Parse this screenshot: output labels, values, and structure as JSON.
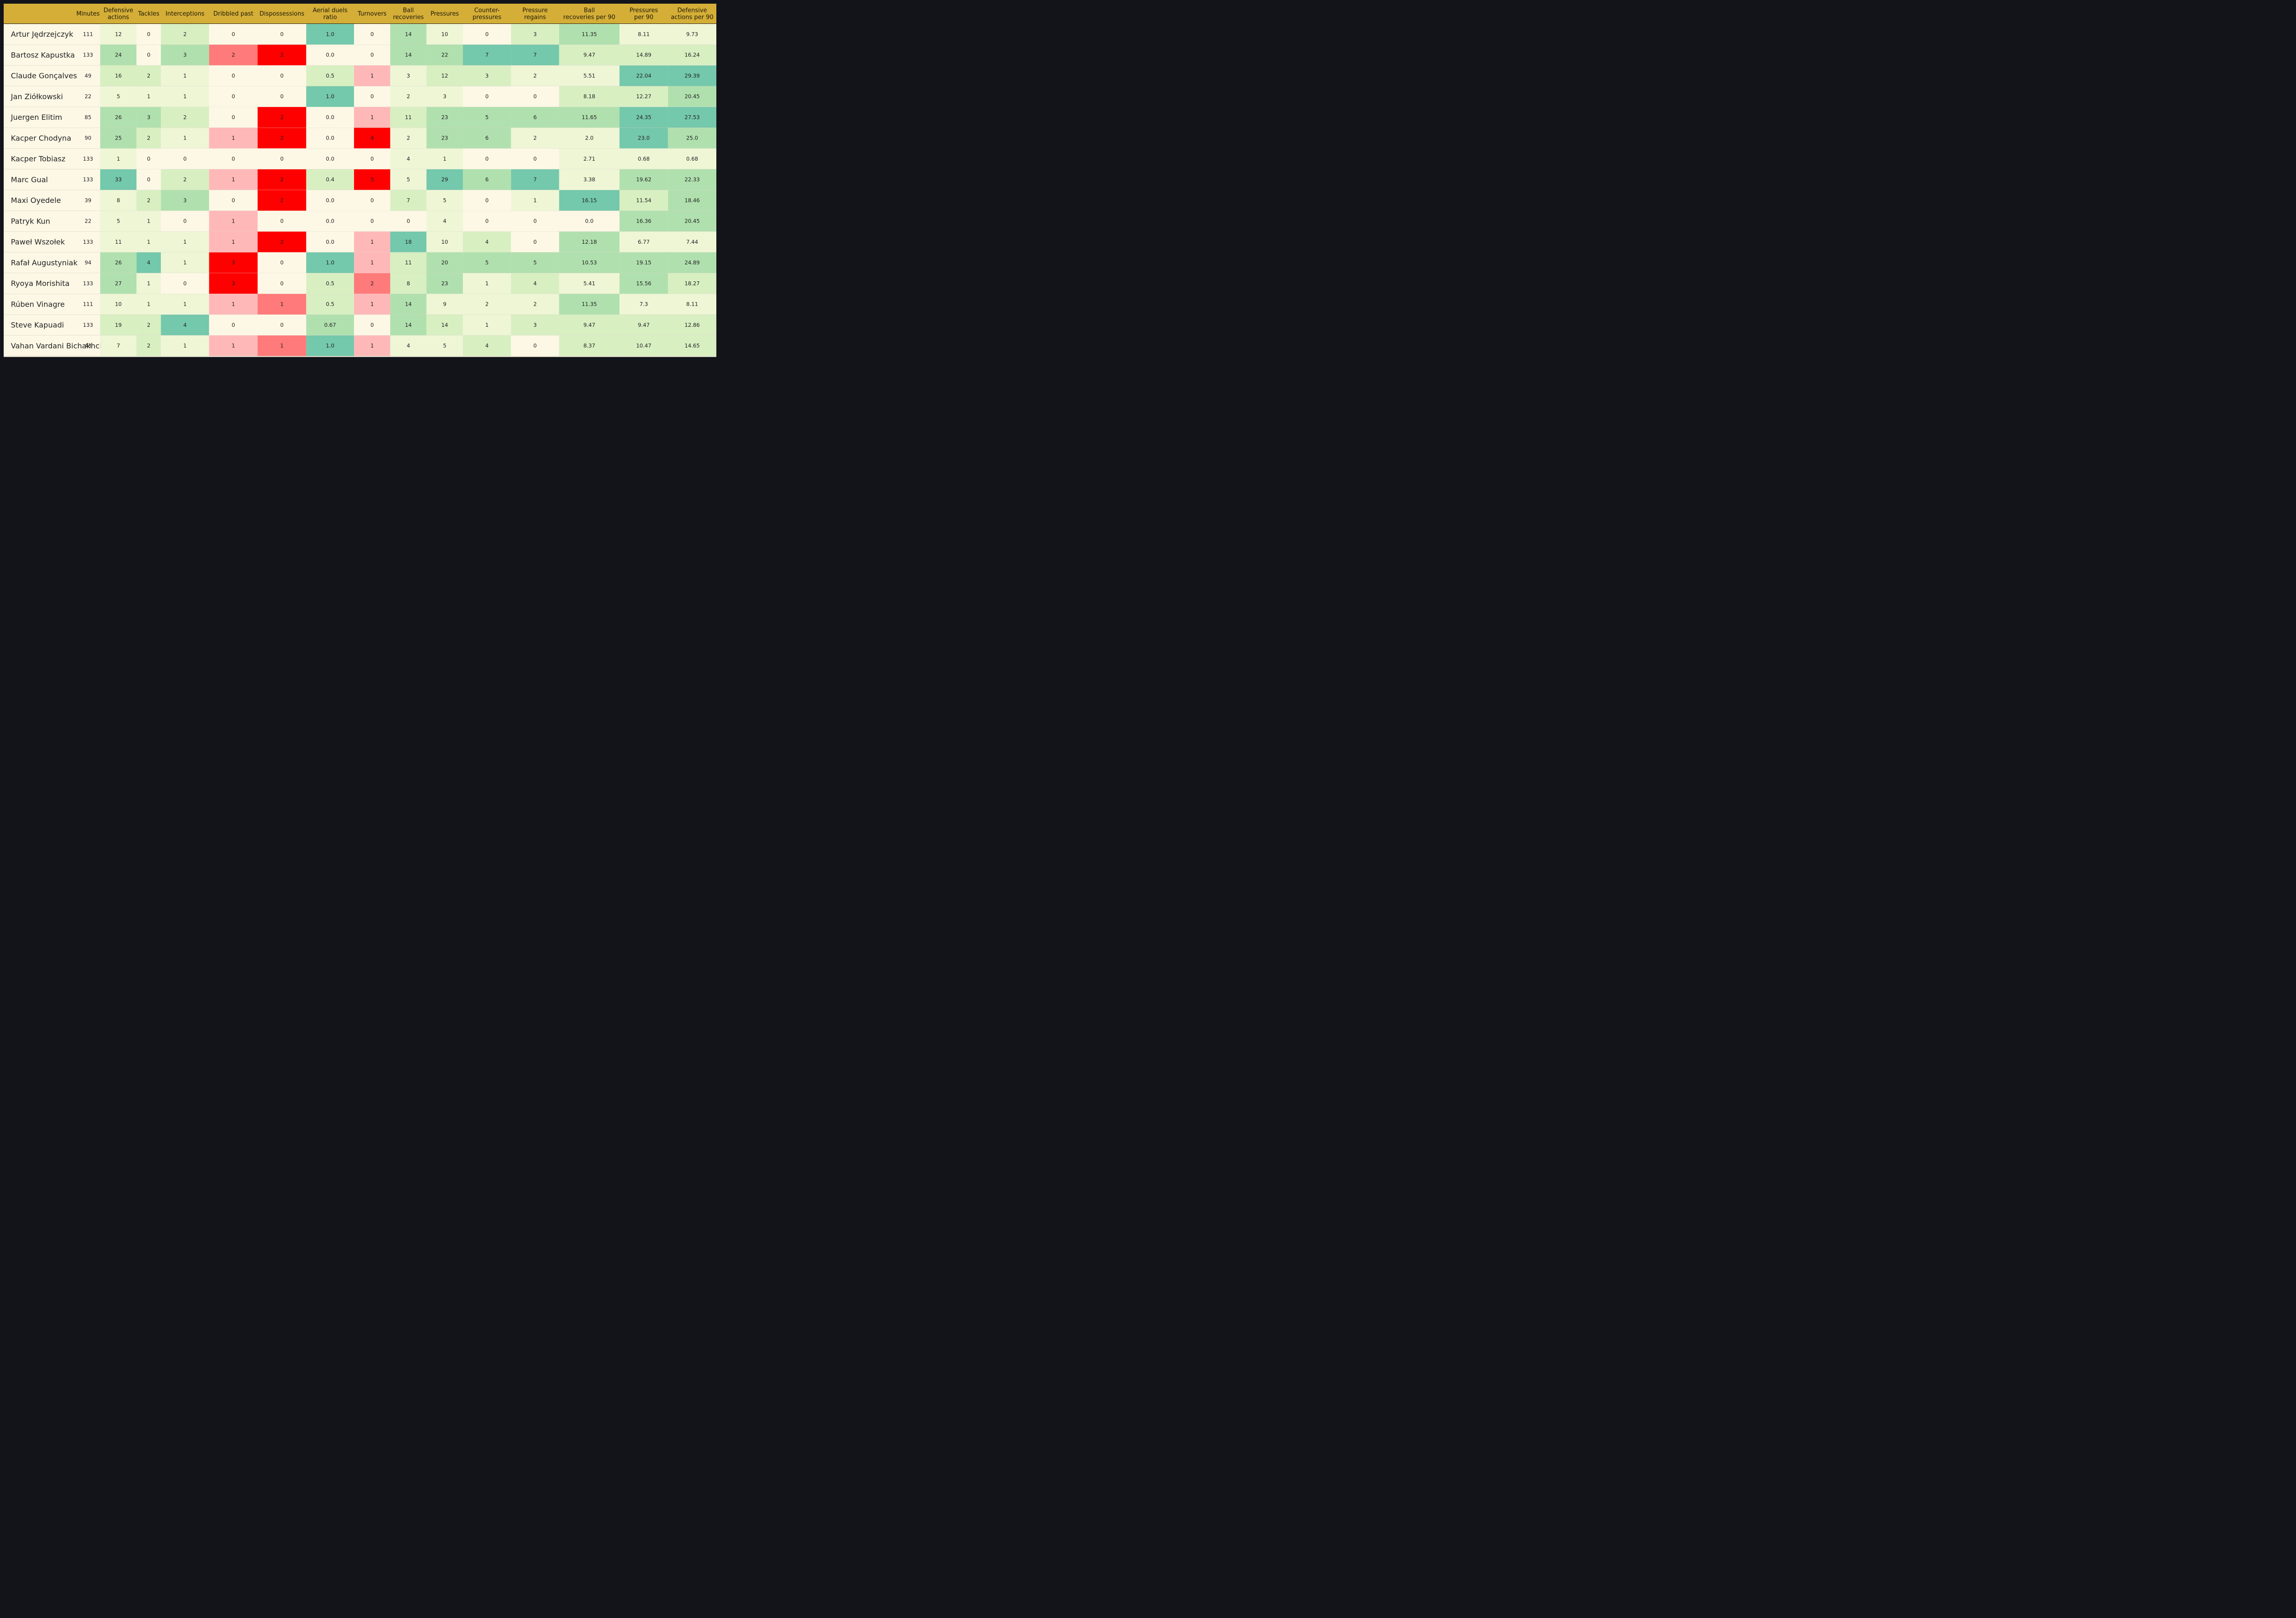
{
  "chart_data": {
    "type": "table",
    "columns": [
      "",
      "Minutes",
      "Defensive\nactions",
      "Tackles",
      "Interceptions",
      "Dribbled past",
      "Dispossessions",
      "Aerial duels\nratio",
      "Turnovers",
      "Ball\nrecoveries",
      "Pressures",
      "Counter-\npressures",
      "Pressure\nregains",
      "Ball\nrecoveries per 90",
      "Pressures\nper 90",
      "Defensive\nactions per 90"
    ],
    "rows": [
      {
        "name": "Artur Jędrzejczyk",
        "values": [
          "111",
          "12",
          "0",
          "2",
          "0",
          "0",
          "1.0",
          "0",
          "14",
          "10",
          "0",
          "3",
          "11.35",
          "8.11",
          "9.73"
        ]
      },
      {
        "name": "Bartosz Kapustka",
        "values": [
          "133",
          "24",
          "0",
          "3",
          "2",
          "2",
          "0.0",
          "0",
          "14",
          "22",
          "7",
          "7",
          "9.47",
          "14.89",
          "16.24"
        ]
      },
      {
        "name": "Claude Gonçalves",
        "values": [
          "49",
          "16",
          "2",
          "1",
          "0",
          "0",
          "0.5",
          "1",
          "3",
          "12",
          "3",
          "2",
          "5.51",
          "22.04",
          "29.39"
        ]
      },
      {
        "name": "Jan Ziółkowski",
        "values": [
          "22",
          "5",
          "1",
          "1",
          "0",
          "0",
          "1.0",
          "0",
          "2",
          "3",
          "0",
          "0",
          "8.18",
          "12.27",
          "20.45"
        ]
      },
      {
        "name": "Juergen Elitim",
        "values": [
          "85",
          "26",
          "3",
          "2",
          "0",
          "2",
          "0.0",
          "1",
          "11",
          "23",
          "5",
          "6",
          "11.65",
          "24.35",
          "27.53"
        ]
      },
      {
        "name": "Kacper Chodyna",
        "values": [
          "90",
          "25",
          "2",
          "1",
          "1",
          "2",
          "0.0",
          "4",
          "2",
          "23",
          "6",
          "2",
          "2.0",
          "23.0",
          "25.0"
        ]
      },
      {
        "name": "Kacper Tobiasz",
        "values": [
          "133",
          "1",
          "0",
          "0",
          "0",
          "0",
          "0.0",
          "0",
          "4",
          "1",
          "0",
          "0",
          "2.71",
          "0.68",
          "0.68"
        ]
      },
      {
        "name": "Marc Gual",
        "values": [
          "133",
          "33",
          "0",
          "2",
          "1",
          "2",
          "0.4",
          "5",
          "5",
          "29",
          "6",
          "7",
          "3.38",
          "19.62",
          "22.33"
        ]
      },
      {
        "name": "Maxi Oyedele",
        "values": [
          "39",
          "8",
          "2",
          "3",
          "0",
          "2",
          "0.0",
          "0",
          "7",
          "5",
          "0",
          "1",
          "16.15",
          "11.54",
          "18.46"
        ]
      },
      {
        "name": "Patryk Kun",
        "values": [
          "22",
          "5",
          "1",
          "0",
          "1",
          "0",
          "0.0",
          "0",
          "0",
          "4",
          "0",
          "0",
          "0.0",
          "16.36",
          "20.45"
        ]
      },
      {
        "name": "Paweł Wszołek",
        "values": [
          "133",
          "11",
          "1",
          "1",
          "1",
          "2",
          "0.0",
          "1",
          "18",
          "10",
          "4",
          "0",
          "12.18",
          "6.77",
          "7.44"
        ]
      },
      {
        "name": "Rafał Augustyniak",
        "values": [
          "94",
          "26",
          "4",
          "1",
          "3",
          "0",
          "1.0",
          "1",
          "11",
          "20",
          "5",
          "5",
          "10.53",
          "19.15",
          "24.89"
        ]
      },
      {
        "name": "Ryoya Morishita",
        "values": [
          "133",
          "27",
          "1",
          "0",
          "3",
          "0",
          "0.5",
          "2",
          "8",
          "23",
          "1",
          "4",
          "5.41",
          "15.56",
          "18.27"
        ]
      },
      {
        "name": "Rúben Vinagre",
        "values": [
          "111",
          "10",
          "1",
          "1",
          "1",
          "1",
          "0.5",
          "1",
          "14",
          "9",
          "2",
          "2",
          "11.35",
          "7.3",
          "8.11"
        ]
      },
      {
        "name": "Steve Kapuadi",
        "values": [
          "133",
          "19",
          "2",
          "4",
          "0",
          "0",
          "0.67",
          "0",
          "14",
          "14",
          "1",
          "3",
          "9.47",
          "9.47",
          "12.86"
        ]
      },
      {
        "name": "Vahan Vardani Bichakhchyan",
        "values": [
          "43",
          "7",
          "2",
          "1",
          "1",
          "1",
          "1.0",
          "1",
          "4",
          "5",
          "4",
          "0",
          "8.37",
          "10.47",
          "14.65"
        ]
      }
    ],
    "colorscale": {
      "positive": [
        "#fdf8e6",
        "#eef6d6",
        "#d8efc2",
        "#b0e0ae",
        "#74c8ab"
      ],
      "negative": [
        "#fdf8e6",
        "#ffb8b8",
        "#ff7a7a",
        "#ff0000"
      ],
      "negative_columns": [
        "Dribbled past",
        "Dispossessions",
        "Turnovers"
      ]
    },
    "header_color": "#d4ae37",
    "frame_color": "#12141a"
  }
}
